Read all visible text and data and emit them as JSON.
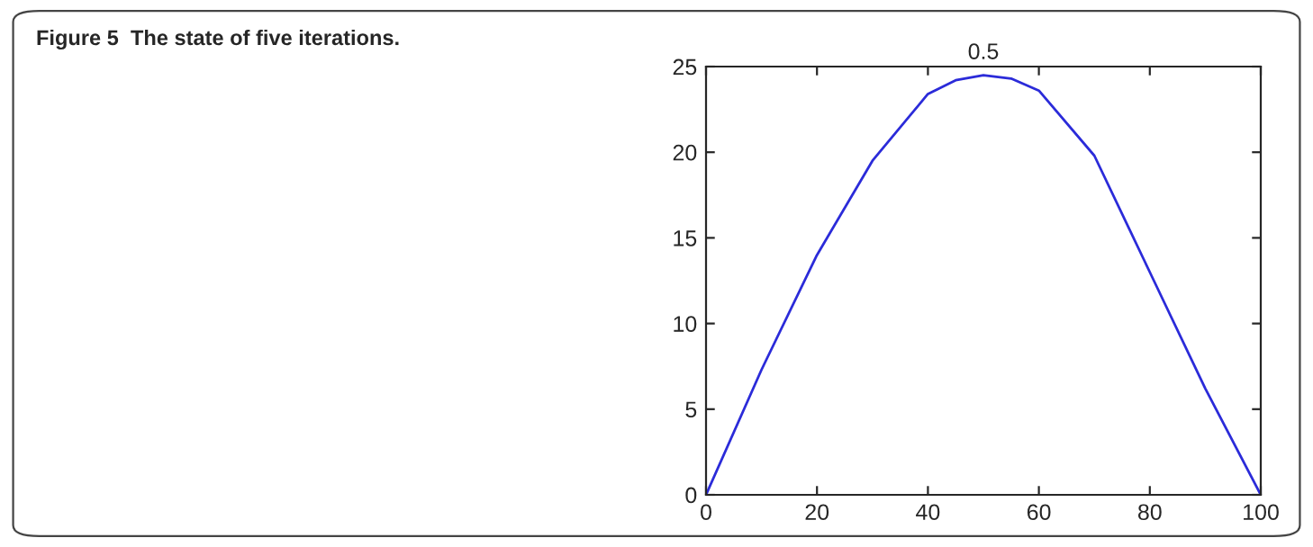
{
  "chart_data": {
    "type": "line",
    "title": "0.5",
    "annotations": [
      "Figure 5  The state of five iterations."
    ],
    "x": [
      0,
      10,
      20,
      30,
      40,
      45,
      50,
      55,
      60,
      70,
      80,
      90,
      100
    ],
    "series": [
      {
        "color": "#2b2bd9",
        "values": [
          0,
          7.3,
          14.0,
          19.5,
          23.4,
          24.2,
          24.5,
          24.3,
          23.6,
          19.8,
          13.0,
          6.2,
          0
        ]
      }
    ],
    "xlim": [
      0,
      100
    ],
    "xticks": [
      0,
      20,
      40,
      60,
      80,
      100
    ],
    "ylim": [
      0,
      25
    ],
    "yticks": [
      0,
      5,
      10,
      15,
      20,
      25
    ],
    "grid": false,
    "legend": false,
    "marker": "none",
    "line_style": "solid"
  }
}
